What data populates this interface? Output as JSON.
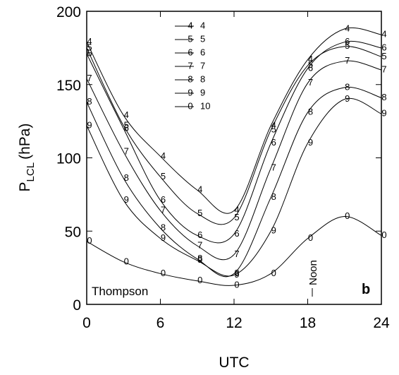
{
  "chart_data": {
    "type": "line",
    "x_label": "UTC",
    "y_label": {
      "main": "P",
      "sub": "LCL",
      "unit": "(hPa)"
    },
    "annotations": {
      "station": "Thompson",
      "panel": "b",
      "noon": "Noon"
    },
    "x": [
      0,
      3,
      6,
      9,
      12,
      15,
      18,
      21,
      24
    ],
    "xlim": [
      0,
      24
    ],
    "xticks": [
      0,
      6,
      12,
      18,
      24
    ],
    "ylim": [
      0,
      200
    ],
    "yticks": [
      0,
      50,
      100,
      150,
      200
    ],
    "color": "#000000",
    "series": [
      {
        "name": "4",
        "marker": "4",
        "values": [
          179,
          129,
          101,
          78,
          64,
          122,
          167,
          188,
          184
        ]
      },
      {
        "name": "5",
        "marker": "5",
        "values": [
          175,
          122,
          87,
          62,
          59,
          119,
          163,
          176,
          169
        ]
      },
      {
        "name": "6",
        "marker": "6",
        "values": [
          171,
          120,
          71,
          47,
          48,
          110,
          161,
          179,
          175
        ]
      },
      {
        "name": "7",
        "marker": "7",
        "values": [
          154,
          104,
          64,
          40,
          34,
          93,
          151,
          166,
          160
        ]
      },
      {
        "name": "8",
        "marker": "8",
        "values": [
          138,
          86,
          52,
          31,
          21,
          73,
          131,
          148,
          141
        ]
      },
      {
        "name": "9",
        "marker": "9",
        "values": [
          122,
          71,
          45,
          30,
          20,
          50,
          110,
          140,
          130
        ]
      },
      {
        "name": "10",
        "marker": "0",
        "values": [
          43,
          29,
          21,
          16,
          13,
          21,
          45,
          60,
          47
        ]
      }
    ]
  }
}
